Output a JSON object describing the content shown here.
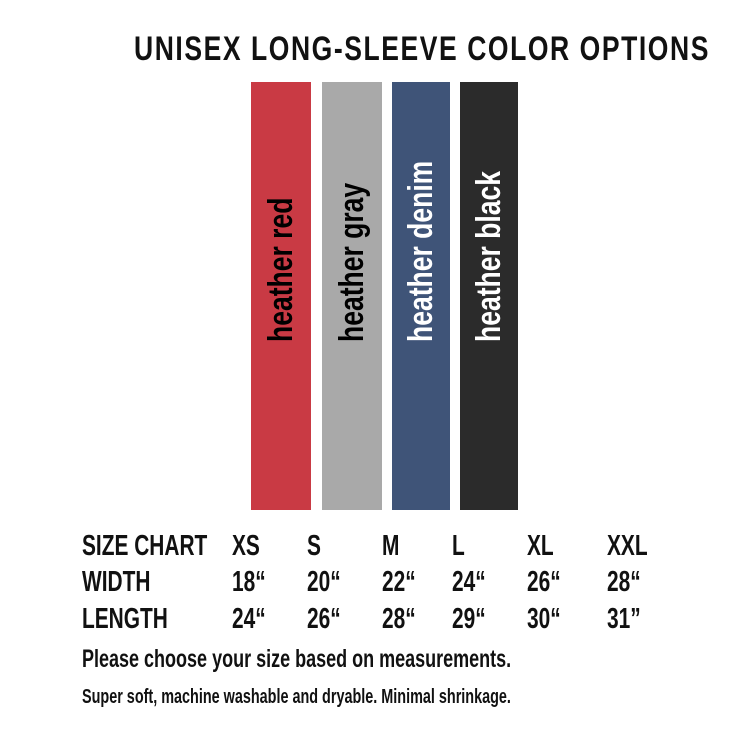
{
  "title": "UNISEX LONG-SLEEVE COLOR OPTIONS",
  "swatches": [
    {
      "label": "heather red",
      "color": "#c93a44",
      "text_color": "#000000"
    },
    {
      "label": "heather gray",
      "color": "#a9a9a9",
      "text_color": "#000000"
    },
    {
      "label": "heather denim",
      "color": "#3f5478",
      "text_color": "#ffffff"
    },
    {
      "label": "heather  black",
      "color": "#2b2b2b",
      "text_color": "#ffffff"
    }
  ],
  "size_chart": {
    "header": [
      "SIZE CHART",
      "XS",
      "S",
      "M",
      "L",
      "XL",
      "XXL"
    ],
    "rows": [
      [
        "WIDTH",
        "18“",
        "20“",
        "22“",
        "24“",
        "26“",
        "28“"
      ],
      [
        "LENGTH",
        "24“",
        "26“",
        "28“",
        "29“",
        "30“",
        "31”"
      ]
    ]
  },
  "note_primary": "Please choose your size based on measurements.",
  "note_secondary": "Super soft, machine washable and dryable. Minimal shrinkage."
}
